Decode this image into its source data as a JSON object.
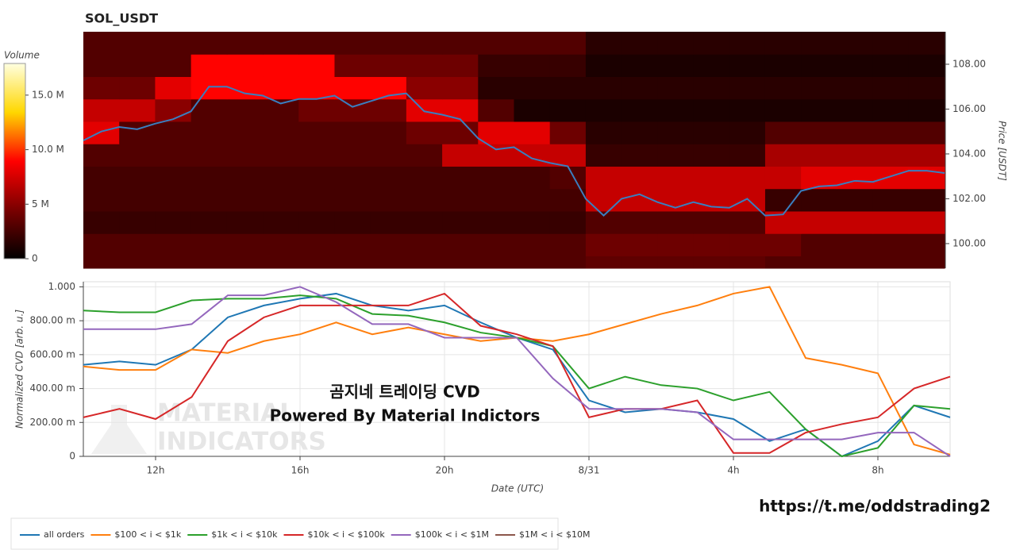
{
  "chart_data": [
    {
      "type": "heatmap",
      "title": "SOL_USDT",
      "y_label": "Price [USDT]",
      "colorbar_title": "Volume",
      "xlim": [
        10,
        34
      ],
      "ylim": [
        98.9,
        109.45
      ],
      "yticks": [
        {
          "value": 100,
          "label": "100.00"
        },
        {
          "value": 102,
          "label": "102.00"
        },
        {
          "value": 104,
          "label": "104.00"
        },
        {
          "value": 106,
          "label": "106.00"
        },
        {
          "value": 108,
          "label": "108.00"
        }
      ],
      "clim": [
        0,
        17.9
      ],
      "cticks": [
        0,
        {
          "value": 5,
          "label": "5 M"
        },
        {
          "value": 10,
          "label": "10.0 M"
        },
        {
          "value": 15,
          "label": "15.0 M"
        }
      ],
      "colorscale": [
        "#000000",
        "#7a0000",
        "#ff0000",
        "#ffd700",
        "#ffffe0"
      ],
      "x_bins": [
        10,
        11,
        12,
        13,
        14,
        15,
        16,
        17,
        18,
        19,
        20,
        21,
        22,
        23,
        24,
        25,
        26,
        27,
        28,
        29,
        30,
        31,
        32,
        33,
        34
      ],
      "y_bins": [
        98.9,
        99.45,
        100.45,
        101.45,
        102.45,
        103.45,
        104.45,
        105.45,
        106.45,
        107.45,
        108.45,
        109.45
      ],
      "z": [
        [
          3,
          3,
          3,
          3,
          3,
          3,
          3,
          3,
          3,
          3,
          3,
          3,
          3,
          3,
          3.5,
          3.5,
          3.5,
          3.5,
          3.5,
          3,
          3,
          3,
          3,
          3
        ],
        [
          3,
          3,
          3,
          3,
          3,
          3,
          3,
          3,
          3,
          3,
          3,
          3,
          3,
          3,
          4,
          4,
          4,
          4,
          4,
          4,
          3,
          3,
          3,
          3
        ],
        [
          2,
          2,
          2,
          2,
          2,
          2,
          2,
          2,
          2,
          2,
          2,
          2,
          2,
          2,
          3,
          3,
          3,
          3,
          3,
          7,
          7,
          7,
          7,
          7
        ],
        [
          2.5,
          2.5,
          2.5,
          2.5,
          2.5,
          2.5,
          2.5,
          2.5,
          2.5,
          2.5,
          2.5,
          2.5,
          2.5,
          2.5,
          7,
          7,
          7,
          7,
          7,
          2,
          2,
          2,
          2,
          2
        ],
        [
          2.5,
          2.5,
          2.5,
          2.5,
          2.5,
          2.5,
          2.5,
          2.5,
          2.5,
          2.5,
          2.5,
          2.5,
          2.5,
          3,
          7,
          7,
          7,
          7,
          7,
          7,
          8,
          8,
          8,
          8
        ],
        [
          3,
          3,
          3,
          3,
          3,
          3,
          3,
          3,
          3,
          3,
          7,
          7,
          7,
          7,
          2,
          2,
          2,
          2,
          2,
          6,
          6,
          6,
          6,
          6
        ],
        [
          8,
          3,
          3,
          3,
          3,
          3,
          3,
          3,
          3,
          4,
          4,
          8,
          8,
          4,
          1.5,
          1.5,
          1.5,
          1.5,
          1.5,
          3,
          3,
          3,
          3,
          3
        ],
        [
          7,
          7,
          5,
          3,
          3,
          3,
          4,
          4,
          4,
          8,
          8,
          3,
          1,
          1,
          1,
          1,
          1,
          1,
          1,
          1,
          1,
          1,
          1,
          1
        ],
        [
          4,
          4,
          8,
          9,
          9,
          9,
          9,
          9,
          9,
          5,
          5,
          1.5,
          1.5,
          1.5,
          1.5,
          1.5,
          1.5,
          1.5,
          1.5,
          1.5,
          1.5,
          1.5,
          1.5,
          1.5
        ],
        [
          3,
          3,
          3,
          9,
          9,
          9,
          9,
          4,
          4,
          4,
          4,
          2,
          2,
          2,
          1,
          1,
          1,
          1,
          1,
          1,
          1,
          1,
          1,
          1
        ],
        [
          3,
          3,
          3,
          3,
          3,
          3,
          3,
          3,
          3,
          3,
          3,
          3,
          3,
          3,
          1.5,
          1.5,
          1.5,
          1.5,
          1.5,
          1.5,
          1.5,
          1.5,
          1.5,
          1.5
        ]
      ],
      "price": {
        "color": "#3a7ebf",
        "x": [
          10,
          10.5,
          11,
          11.5,
          12,
          12.5,
          13,
          13.5,
          14,
          14.5,
          15,
          15.5,
          16,
          16.5,
          17,
          17.5,
          18,
          18.5,
          19,
          19.5,
          20,
          20.5,
          21,
          21.5,
          22,
          22.5,
          23,
          23.5,
          24,
          24.5,
          25,
          25.5,
          26,
          26.5,
          27,
          27.5,
          28,
          28.5,
          29,
          29.5,
          30,
          30.5,
          31,
          31.5,
          32,
          32.5,
          33,
          33.5,
          34
        ],
        "values": [
          104.6,
          105.0,
          105.2,
          105.1,
          105.35,
          105.55,
          105.9,
          107.0,
          107.0,
          106.7,
          106.6,
          106.25,
          106.45,
          106.45,
          106.6,
          106.1,
          106.35,
          106.6,
          106.7,
          105.9,
          105.75,
          105.55,
          104.7,
          104.2,
          104.3,
          103.8,
          103.6,
          103.45,
          102.0,
          101.25,
          102.0,
          102.2,
          101.85,
          101.6,
          101.85,
          101.65,
          101.6,
          102.0,
          101.25,
          101.3,
          102.35,
          102.55,
          102.6,
          102.8,
          102.75,
          103.0,
          103.25,
          103.25,
          103.15
        ]
      }
    },
    {
      "type": "line",
      "x_label": "Date (UTC)",
      "y_label": "Normalized CVD [arb. u.]",
      "xlim": [
        10,
        34
      ],
      "ylim": [
        0,
        1.03
      ],
      "grid": true,
      "legend": "bottom",
      "xticks": [
        {
          "value": 12,
          "label": "12h"
        },
        {
          "value": 16,
          "label": "16h"
        },
        {
          "value": 20,
          "label": "20h"
        },
        {
          "value": 24,
          "label": "8/31"
        },
        {
          "value": 28,
          "label": "4h"
        },
        {
          "value": 32,
          "label": "8h"
        }
      ],
      "yticks": [
        0,
        {
          "value": 0.2,
          "label": "200.00 m"
        },
        {
          "value": 0.4,
          "label": "400.00 m"
        },
        {
          "value": 0.6,
          "label": "600.00 m"
        },
        {
          "value": 0.8,
          "label": "800.00 m"
        },
        {
          "value": 1,
          "label": "1.000"
        }
      ],
      "x": [
        10,
        11,
        12,
        13,
        14,
        15,
        16,
        17,
        18,
        19,
        20,
        21,
        22,
        23,
        24,
        25,
        26,
        27,
        28,
        29,
        30,
        31,
        32,
        33,
        34
      ],
      "series": [
        {
          "name": "all orders",
          "color": "#1f77b4",
          "values": [
            0.54,
            0.56,
            0.54,
            0.63,
            0.82,
            0.89,
            0.93,
            0.96,
            0.89,
            0.86,
            0.89,
            0.79,
            0.7,
            0.63,
            0.33,
            0.26,
            0.28,
            0.26,
            0.22,
            0.09,
            0.16,
            0.0,
            0.09,
            0.3,
            0.23
          ]
        },
        {
          "name": "$100 < i < $1k",
          "color": "#ff7f0e",
          "values": [
            0.53,
            0.51,
            0.51,
            0.63,
            0.61,
            0.68,
            0.72,
            0.79,
            0.72,
            0.76,
            0.72,
            0.68,
            0.7,
            0.68,
            0.72,
            0.78,
            0.84,
            0.89,
            0.96,
            1.0,
            0.58,
            0.54,
            0.49,
            0.07,
            0.01
          ]
        },
        {
          "name": "$1k < i < $10k",
          "color": "#2ca02c",
          "values": [
            0.86,
            0.85,
            0.85,
            0.92,
            0.93,
            0.93,
            0.95,
            0.93,
            0.84,
            0.83,
            0.79,
            0.73,
            0.7,
            0.65,
            0.4,
            0.47,
            0.42,
            0.4,
            0.33,
            0.38,
            0.16,
            0.0,
            0.05,
            0.3,
            0.28
          ]
        },
        {
          "name": "$10k < i < $100k",
          "color": "#d62728",
          "values": [
            0.23,
            0.28,
            0.22,
            0.35,
            0.68,
            0.82,
            0.89,
            0.89,
            0.89,
            0.89,
            0.96,
            0.77,
            0.72,
            0.65,
            0.23,
            0.28,
            0.28,
            0.33,
            0.02,
            0.02,
            0.14,
            0.19,
            0.23,
            0.4,
            0.47
          ]
        },
        {
          "name": "$100k < i < $1M",
          "color": "#9467bd",
          "values": [
            0.75,
            0.75,
            0.75,
            0.78,
            0.95,
            0.95,
            1.0,
            0.91,
            0.78,
            0.78,
            0.7,
            0.7,
            0.7,
            0.46,
            0.28,
            0.28,
            0.28,
            0.26,
            0.1,
            0.1,
            0.1,
            0.1,
            0.14,
            0.14,
            0.0
          ]
        },
        {
          "name": "$1M < i < $10M",
          "color": "#8c564b",
          "values": [
            null,
            null,
            null,
            null,
            null,
            null,
            null,
            null,
            null,
            null,
            null,
            null,
            null,
            null,
            null,
            null,
            null,
            null,
            null,
            null,
            null,
            null,
            null,
            null,
            null
          ]
        }
      ],
      "annotations": [
        "곰지네 트레이딩 CVD",
        "Powered By Material Indictors"
      ],
      "watermark": [
        "MATERIAL",
        "INDICATORS"
      ]
    }
  ],
  "footer_link": "https://t.me/oddstrading2"
}
